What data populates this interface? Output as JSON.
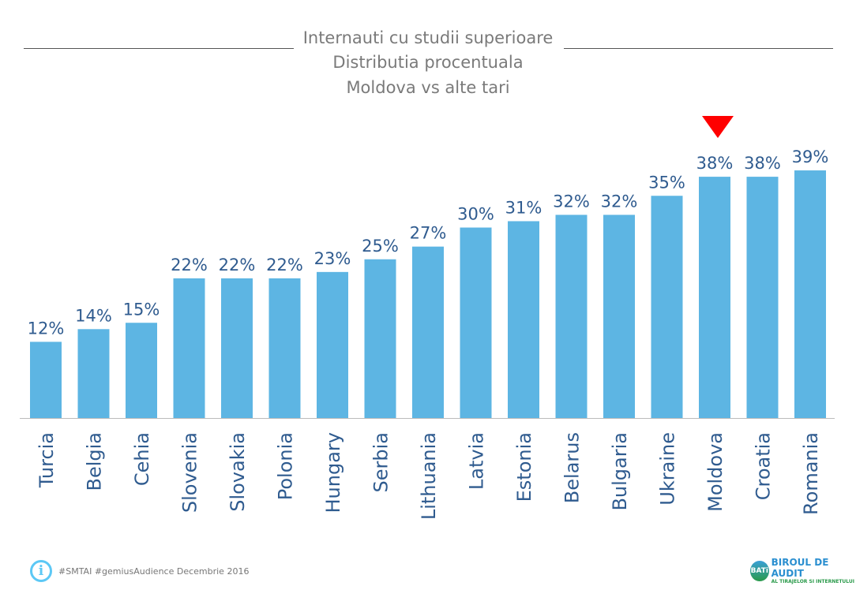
{
  "chart_data": {
    "type": "bar",
    "title": "Internauti cu studii superioare",
    "subtitle": [
      "Distributia procentuala",
      "Moldova vs alte tari"
    ],
    "categories": [
      "Turcia",
      "Belgia",
      "Cehia",
      "Slovenia",
      "Slovakia",
      "Polonia",
      "Hungary",
      "Serbia",
      "Lithuania",
      "Latvia",
      "Estonia",
      "Belarus",
      "Bulgaria",
      "Ukraine",
      "Moldova",
      "Croatia",
      "Romania"
    ],
    "values": [
      12,
      14,
      15,
      22,
      22,
      22,
      23,
      25,
      27,
      30,
      31,
      32,
      32,
      35,
      38,
      38,
      39
    ],
    "value_labels": [
      "12%",
      "14%",
      "15%",
      "22%",
      "22%",
      "22%",
      "23%",
      "25%",
      "27%",
      "30%",
      "31%",
      "32%",
      "32%",
      "35%",
      "38%",
      "38%",
      "39%"
    ],
    "unit": "%",
    "highlight": "Moldova",
    "ylim": [
      0,
      40
    ],
    "grid": false,
    "bar_color": "#5db5e3",
    "highlight_marker_color": "#ff0000"
  },
  "footer": {
    "source": "#SMTAI #gemiusAudience Decembrie 2016",
    "info_icon": "info-icon"
  },
  "logo": {
    "abbr": "BATi",
    "line1": "BIROUL DE AUDIT",
    "line2": "AL TIRAJELOR SI INTERNETULUI"
  }
}
